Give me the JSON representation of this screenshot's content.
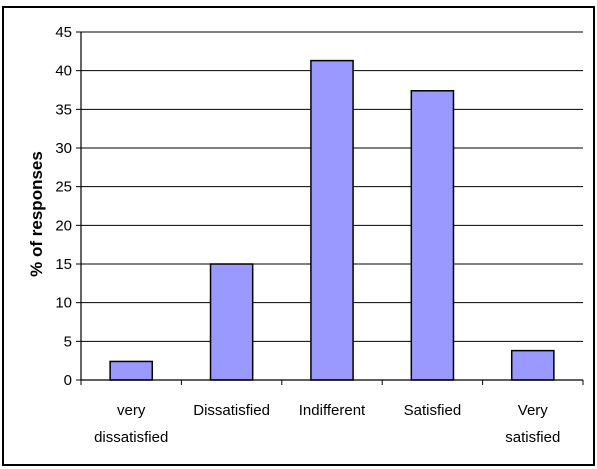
{
  "chart_data": {
    "type": "bar",
    "title": "",
    "xlabel": "",
    "ylabel": "% of responses",
    "categories": [
      [
        "very",
        "dissatisfied"
      ],
      [
        "Dissatisfied"
      ],
      [
        "Indifferent"
      ],
      [
        "Satisfied"
      ],
      [
        "Very",
        "satisfied"
      ]
    ],
    "values": [
      2.4,
      15.0,
      41.3,
      37.4,
      3.8
    ],
    "ylim": [
      0,
      45
    ],
    "yticks": [
      0,
      5,
      10,
      15,
      20,
      25,
      30,
      35,
      40,
      45
    ],
    "grid": true,
    "legend": "none",
    "bar_color": "#9999ff",
    "bar_edge_color": "#000000"
  }
}
